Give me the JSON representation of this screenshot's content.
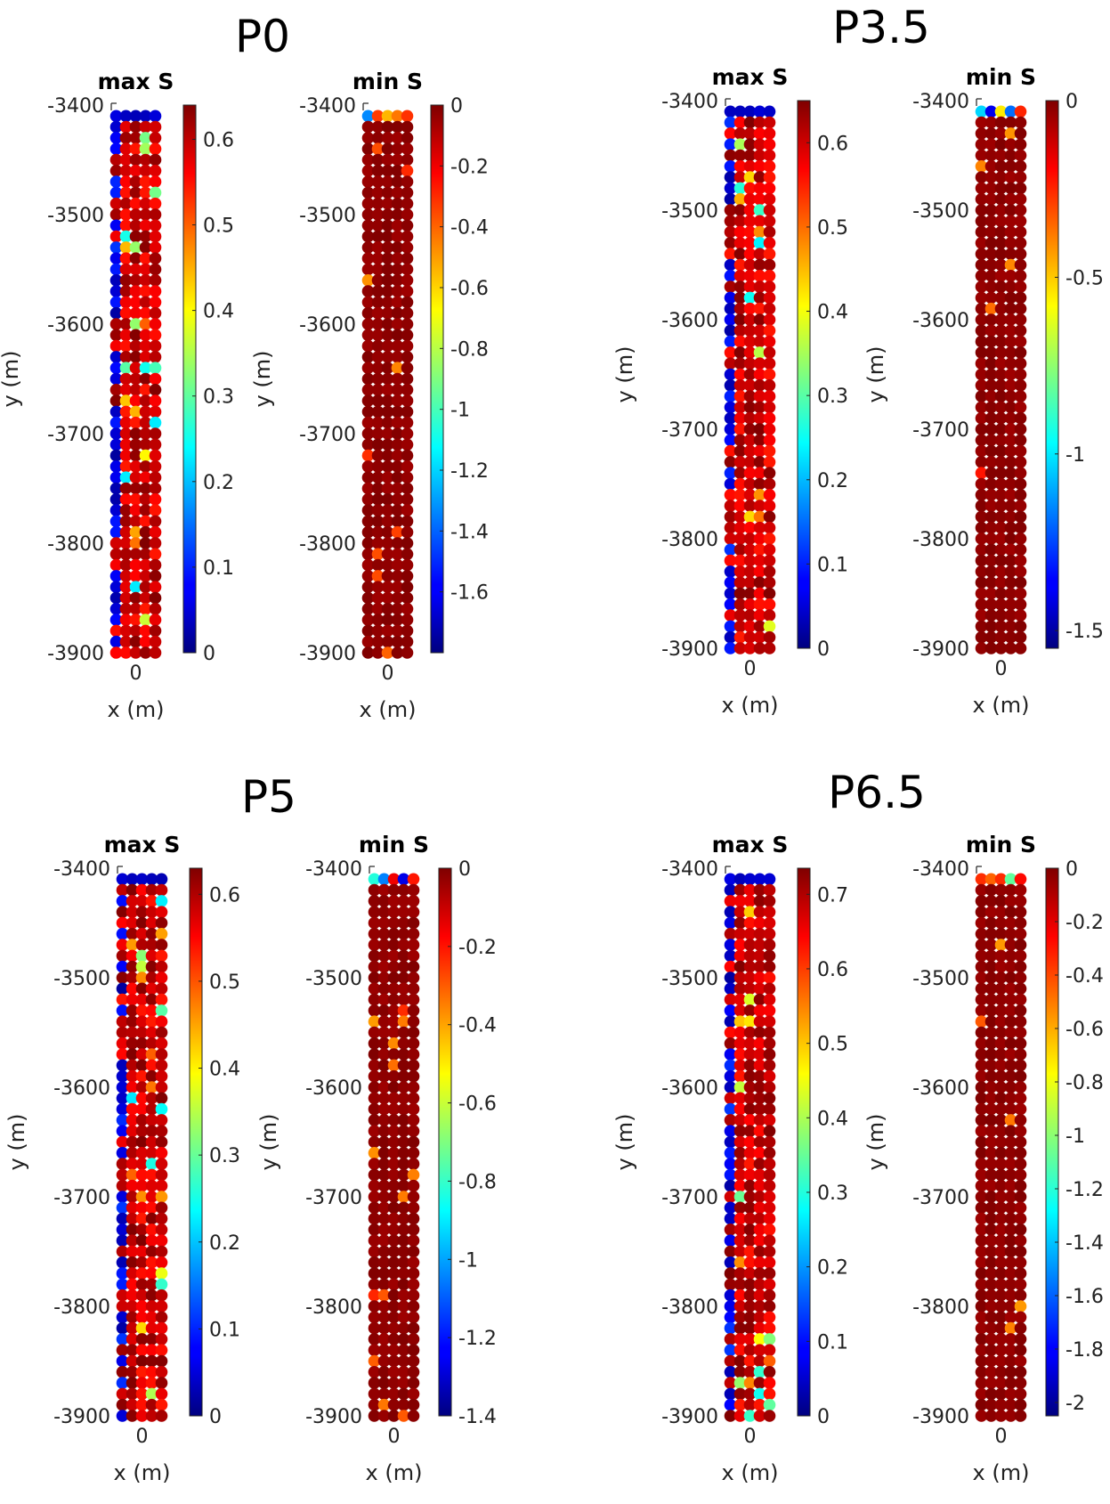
{
  "chart_data": {
    "type": "scatter",
    "groups": [
      {
        "title": "P0",
        "panels": [
          {
            "title": "max S",
            "xlabel": "x (m)",
            "ylabel": "y (m)",
            "xticks": [
              "0"
            ],
            "ylim": [
              -3900,
              -3400
            ],
            "yticks": [
              "-3400",
              "-3500",
              "-3600",
              "-3700",
              "-3800",
              "-3900"
            ],
            "colorbar": {
              "min": 0,
              "max": 0.64,
              "ticks": [
                0,
                0.1,
                0.2,
                0.3,
                0.4,
                0.5,
                0.6
              ],
              "tick_labels": [
                "0",
                "0.1",
                "0.2",
                "0.3",
                "0.4",
                "0.5",
                "0.6"
              ]
            },
            "pattern": "max",
            "seed": 11,
            "columns": 5,
            "rows_y_start": -3410,
            "rows_y_end": -3900,
            "row_spacing": 10
          },
          {
            "title": "min S",
            "xlabel": "x (m)",
            "ylabel": "y (m)",
            "xticks": [
              "0"
            ],
            "ylim": [
              -3900,
              -3400
            ],
            "yticks": [
              "-3400",
              "-3500",
              "-3600",
              "-3700",
              "-3800",
              "-3900"
            ],
            "colorbar": {
              "min": -1.8,
              "max": 0,
              "ticks": [
                0,
                -0.2,
                -0.4,
                -0.6,
                -0.8,
                -1,
                -1.2,
                -1.4,
                -1.6
              ],
              "tick_labels": [
                "0",
                "-0.2",
                "-0.4",
                "-0.6",
                "-0.8",
                "-1",
                "-1.2",
                "-1.4",
                "-1.6"
              ]
            },
            "pattern": "min",
            "seed": 12,
            "columns": 5,
            "rows_y_start": -3410,
            "rows_y_end": -3900,
            "row_spacing": 10
          }
        ]
      },
      {
        "title": "P3.5",
        "panels": [
          {
            "title": "max S",
            "xlabel": "x (m)",
            "ylabel": "y (m)",
            "xticks": [
              "0"
            ],
            "ylim": [
              -3900,
              -3400
            ],
            "yticks": [
              "-3400",
              "-3500",
              "-3600",
              "-3700",
              "-3800",
              "-3900"
            ],
            "colorbar": {
              "min": 0,
              "max": 0.65,
              "ticks": [
                0,
                0.1,
                0.2,
                0.3,
                0.4,
                0.5,
                0.6
              ],
              "tick_labels": [
                "0",
                "0.1",
                "0.2",
                "0.3",
                "0.4",
                "0.5",
                "0.6"
              ]
            },
            "pattern": "max",
            "seed": 21,
            "columns": 5,
            "rows_y_start": -3410,
            "rows_y_end": -3900,
            "row_spacing": 10
          },
          {
            "title": "min S",
            "xlabel": "x (m)",
            "ylabel": "y (m)",
            "xticks": [
              "0"
            ],
            "ylim": [
              -3900,
              -3400
            ],
            "yticks": [
              "-3400",
              "-3500",
              "-3600",
              "-3700",
              "-3800",
              "-3900"
            ],
            "colorbar": {
              "min": -1.55,
              "max": 0,
              "ticks": [
                0,
                -0.5,
                -1,
                -1.5
              ],
              "tick_labels": [
                "0",
                "-0.5",
                "-1",
                "-1.5"
              ]
            },
            "pattern": "min",
            "seed": 22,
            "columns": 5,
            "rows_y_start": -3410,
            "rows_y_end": -3900,
            "row_spacing": 10
          }
        ]
      },
      {
        "title": "P5",
        "panels": [
          {
            "title": "max S",
            "xlabel": "x (m)",
            "ylabel": "y (m)",
            "xticks": [
              "0"
            ],
            "ylim": [
              -3900,
              -3400
            ],
            "yticks": [
              "-3400",
              "-3500",
              "-3600",
              "-3700",
              "-3800",
              "-3900"
            ],
            "colorbar": {
              "min": 0,
              "max": 0.63,
              "ticks": [
                0,
                0.1,
                0.2,
                0.3,
                0.4,
                0.5,
                0.6
              ],
              "tick_labels": [
                "0",
                "0.1",
                "0.2",
                "0.3",
                "0.4",
                "0.5",
                "0.6"
              ]
            },
            "pattern": "max",
            "seed": 31,
            "columns": 5,
            "rows_y_start": -3410,
            "rows_y_end": -3900,
            "row_spacing": 10
          },
          {
            "title": "min S",
            "xlabel": "x (m)",
            "ylabel": "y (m)",
            "xticks": [
              "0"
            ],
            "ylim": [
              -3900,
              -3400
            ],
            "yticks": [
              "-3400",
              "-3500",
              "-3600",
              "-3700",
              "-3800",
              "-3900"
            ],
            "colorbar": {
              "min": -1.4,
              "max": 0,
              "ticks": [
                0,
                -0.2,
                -0.4,
                -0.6,
                -0.8,
                -1,
                -1.2,
                -1.4
              ],
              "tick_labels": [
                "0",
                "-0.2",
                "-0.4",
                "-0.6",
                "-0.8",
                "-1",
                "-1.2",
                "-1.4"
              ]
            },
            "pattern": "min",
            "seed": 32,
            "columns": 5,
            "rows_y_start": -3410,
            "rows_y_end": -3900,
            "row_spacing": 10
          }
        ]
      },
      {
        "title": "P6.5",
        "panels": [
          {
            "title": "max S",
            "xlabel": "x (m)",
            "ylabel": "y (m)",
            "xticks": [
              "0"
            ],
            "ylim": [
              -3900,
              -3400
            ],
            "yticks": [
              "-3400",
              "-3500",
              "-3600",
              "-3700",
              "-3800",
              "-3900"
            ],
            "colorbar": {
              "min": 0,
              "max": 0.735,
              "ticks": [
                0,
                0.1,
                0.2,
                0.3,
                0.4,
                0.5,
                0.6,
                0.7
              ],
              "tick_labels": [
                "0",
                "0.1",
                "0.2",
                "0.3",
                "0.4",
                "0.5",
                "0.6",
                "0.7"
              ]
            },
            "pattern": "max",
            "seed": 41,
            "columns": 5,
            "rows_y_start": -3410,
            "rows_y_end": -3900,
            "row_spacing": 10
          },
          {
            "title": "min S",
            "xlabel": "x (m)",
            "ylabel": "y (m)",
            "xticks": [
              "0"
            ],
            "ylim": [
              -3900,
              -3400
            ],
            "yticks": [
              "-3400",
              "-3500",
              "-3600",
              "-3700",
              "-3800",
              "-3900"
            ],
            "colorbar": {
              "min": -2.05,
              "max": 0,
              "ticks": [
                0,
                -0.2,
                -0.4,
                -0.6,
                -0.8,
                -1,
                -1.2,
                -1.4,
                -1.6,
                -1.8,
                -2
              ],
              "tick_labels": [
                "0",
                "-0.2",
                "-0.4",
                "-0.6",
                "-0.8",
                "-1",
                "-1.2",
                "-1.4",
                "-1.6",
                "-1.8",
                "-2"
              ]
            },
            "pattern": "min",
            "seed": 42,
            "columns": 5,
            "rows_y_start": -3410,
            "rows_y_end": -3900,
            "row_spacing": 10
          }
        ]
      }
    ],
    "colormap": "jet"
  }
}
